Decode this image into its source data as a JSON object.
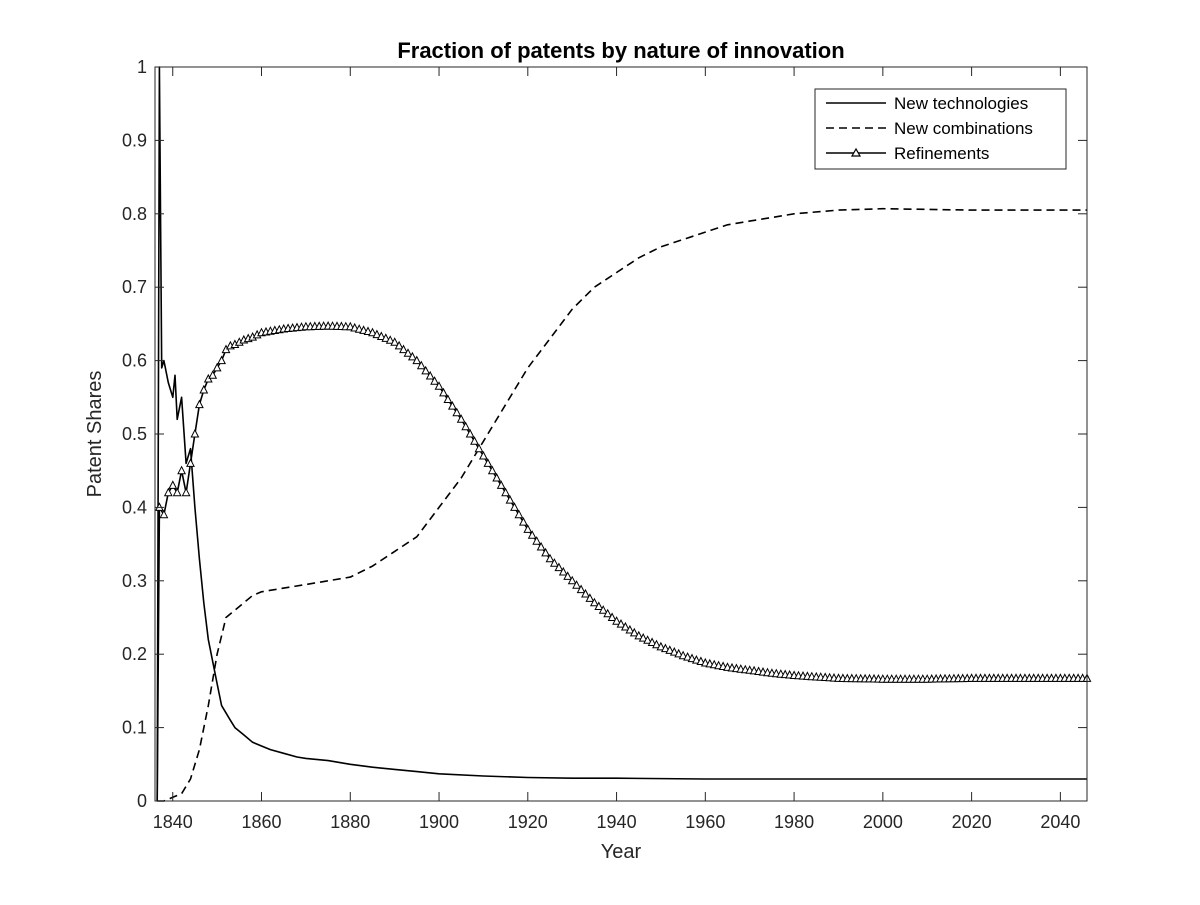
{
  "chart_data": {
    "type": "line",
    "title": "Fraction of patents by nature of innovation",
    "xlabel": "Year",
    "ylabel": "Patent Shares",
    "xlim": [
      1836,
      2046
    ],
    "ylim": [
      0,
      1
    ],
    "xticks": [
      1840,
      1860,
      1880,
      1900,
      1920,
      1940,
      1960,
      1980,
      2000,
      2020,
      2040
    ],
    "yticks": [
      0,
      0.1,
      0.2,
      0.3,
      0.4,
      0.5,
      0.6,
      0.7,
      0.8,
      0.9,
      1
    ],
    "ytick_labels": [
      "0",
      "0.1",
      "0.2",
      "0.3",
      "0.4",
      "0.5",
      "0.6",
      "0.7",
      "0.8",
      "0.9",
      "1"
    ],
    "grid": false,
    "legend_position": "top-right",
    "series": [
      {
        "name": "New technologies",
        "style": "solid",
        "marker": "none",
        "color": "#000000",
        "x": [
          1836.5,
          1837,
          1837.5,
          1838,
          1839,
          1840,
          1840.5,
          1841,
          1842,
          1843,
          1844,
          1845,
          1846,
          1847,
          1848,
          1849,
          1850,
          1851,
          1852,
          1853,
          1854,
          1856,
          1858,
          1860,
          1862,
          1865,
          1868,
          1870,
          1875,
          1880,
          1885,
          1890,
          1895,
          1900,
          1910,
          1920,
          1930,
          1940,
          1960,
          1980,
          2000,
          2020,
          2046
        ],
        "y": [
          0.0,
          1.0,
          0.59,
          0.6,
          0.57,
          0.55,
          0.58,
          0.52,
          0.55,
          0.46,
          0.48,
          0.4,
          0.33,
          0.27,
          0.22,
          0.19,
          0.16,
          0.13,
          0.12,
          0.11,
          0.1,
          0.09,
          0.08,
          0.075,
          0.07,
          0.065,
          0.06,
          0.058,
          0.055,
          0.05,
          0.046,
          0.043,
          0.04,
          0.037,
          0.034,
          0.032,
          0.031,
          0.031,
          0.03,
          0.03,
          0.03,
          0.03,
          0.03
        ]
      },
      {
        "name": "New combinations",
        "style": "dashed",
        "marker": "none",
        "color": "#000000",
        "x": [
          1836.5,
          1838,
          1840,
          1842,
          1844,
          1846,
          1848,
          1850,
          1852,
          1854,
          1856,
          1858,
          1860,
          1865,
          1870,
          1875,
          1880,
          1885,
          1890,
          1895,
          1900,
          1905,
          1910,
          1915,
          1920,
          1925,
          1930,
          1935,
          1940,
          1945,
          1950,
          1955,
          1960,
          1965,
          1970,
          1975,
          1980,
          1990,
          2000,
          2010,
          2020,
          2030,
          2046
        ],
        "y": [
          0.0,
          0.0,
          0.005,
          0.01,
          0.03,
          0.07,
          0.13,
          0.2,
          0.25,
          0.26,
          0.27,
          0.28,
          0.285,
          0.29,
          0.295,
          0.3,
          0.305,
          0.32,
          0.34,
          0.36,
          0.4,
          0.44,
          0.49,
          0.54,
          0.59,
          0.63,
          0.67,
          0.7,
          0.72,
          0.74,
          0.755,
          0.765,
          0.775,
          0.785,
          0.79,
          0.795,
          0.8,
          0.805,
          0.807,
          0.806,
          0.805,
          0.805,
          0.805
        ]
      },
      {
        "name": "Refinements",
        "style": "solid",
        "marker": "triangle",
        "color": "#000000",
        "x": [
          1836.5,
          1837,
          1838,
          1839,
          1840,
          1841,
          1842,
          1843,
          1844,
          1845,
          1846,
          1847,
          1848,
          1849,
          1850,
          1851,
          1852,
          1853,
          1854,
          1856,
          1858,
          1860,
          1862,
          1865,
          1868,
          1870,
          1875,
          1880,
          1885,
          1890,
          1895,
          1900,
          1905,
          1910,
          1915,
          1920,
          1925,
          1930,
          1935,
          1940,
          1945,
          1950,
          1955,
          1960,
          1965,
          1970,
          1975,
          1980,
          1985,
          1990,
          2000,
          2010,
          2020,
          2030,
          2046
        ],
        "y": [
          0.0,
          0.4,
          0.39,
          0.42,
          0.43,
          0.42,
          0.45,
          0.42,
          0.46,
          0.5,
          0.54,
          0.56,
          0.575,
          0.58,
          0.59,
          0.6,
          0.615,
          0.62,
          0.622,
          0.628,
          0.632,
          0.638,
          0.64,
          0.643,
          0.645,
          0.646,
          0.647,
          0.646,
          0.638,
          0.625,
          0.6,
          0.565,
          0.52,
          0.47,
          0.42,
          0.37,
          0.33,
          0.3,
          0.27,
          0.245,
          0.225,
          0.21,
          0.198,
          0.188,
          0.182,
          0.178,
          0.174,
          0.171,
          0.169,
          0.167,
          0.166,
          0.166,
          0.167,
          0.167,
          0.167
        ]
      }
    ]
  }
}
